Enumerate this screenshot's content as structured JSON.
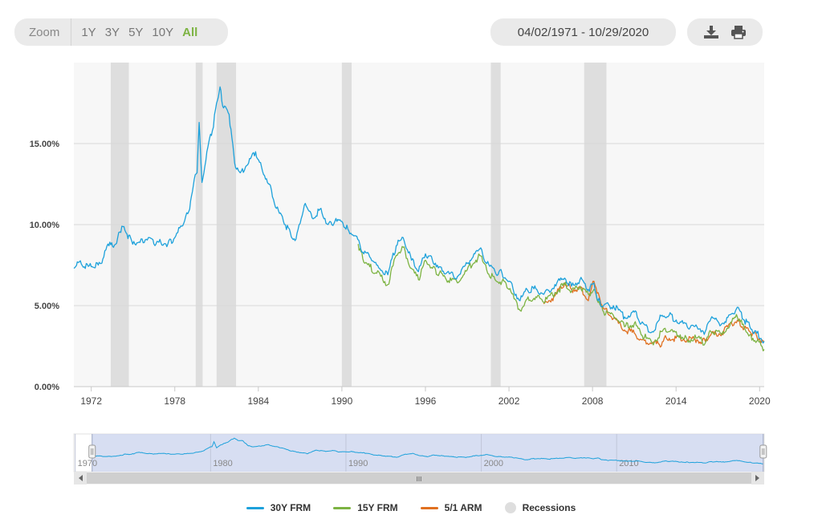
{
  "toolbar": {
    "zoom_label": "Zoom",
    "zoom_options": [
      "1Y",
      "3Y",
      "5Y",
      "10Y",
      "All"
    ],
    "active_zoom": "All",
    "date_range": "04/02/1971 - 10/29/2020",
    "download_icon": "download-icon",
    "print_icon": "print-icon"
  },
  "colors": {
    "frm30": "#1da1db",
    "frm15": "#7cb342",
    "arm51": "#e07020",
    "recession": "#dedede",
    "active_zoom": "#7cb342"
  },
  "chart_data": {
    "type": "line",
    "xlabel": "",
    "ylabel": "",
    "y_ticks": [
      "0.00%",
      "5.00%",
      "10.00%",
      "15.00%"
    ],
    "x_ticks": [
      "1972",
      "1978",
      "1984",
      "1990",
      "1996",
      "2002",
      "2008",
      "2014",
      "2020"
    ],
    "xlim": [
      1971.25,
      2020.83
    ],
    "ylim": [
      0,
      20
    ],
    "grid": "horizontal",
    "legend_position": "bottom",
    "series": [
      {
        "name": "30Y FRM",
        "points": [
          [
            1971.25,
            7.3
          ],
          [
            1971.5,
            7.7
          ],
          [
            1972.0,
            7.4
          ],
          [
            1972.5,
            7.4
          ],
          [
            1973.0,
            7.5
          ],
          [
            1973.4,
            8.0
          ],
          [
            1973.7,
            8.8
          ],
          [
            1974.1,
            8.6
          ],
          [
            1974.4,
            9.2
          ],
          [
            1974.7,
            9.9
          ],
          [
            1975.0,
            9.5
          ],
          [
            1975.4,
            9.0
          ],
          [
            1976.0,
            8.9
          ],
          [
            1976.6,
            9.2
          ],
          [
            1977.0,
            8.8
          ],
          [
            1977.5,
            8.9
          ],
          [
            1978.0,
            8.8
          ],
          [
            1978.5,
            9.2
          ],
          [
            1979.0,
            9.9
          ],
          [
            1979.5,
            10.8
          ],
          [
            1979.9,
            12.8
          ],
          [
            1980.1,
            13.2
          ],
          [
            1980.25,
            16.3
          ],
          [
            1980.45,
            12.6
          ],
          [
            1980.8,
            14.5
          ],
          [
            1981.2,
            15.8
          ],
          [
            1981.5,
            17.5
          ],
          [
            1981.75,
            18.5
          ],
          [
            1982.0,
            17.2
          ],
          [
            1982.4,
            16.8
          ],
          [
            1982.8,
            13.8
          ],
          [
            1983.2,
            13.2
          ],
          [
            1983.8,
            13.8
          ],
          [
            1984.3,
            14.5
          ],
          [
            1984.8,
            13.3
          ],
          [
            1985.3,
            12.5
          ],
          [
            1985.8,
            11.0
          ],
          [
            1986.3,
            10.2
          ],
          [
            1986.8,
            9.5
          ],
          [
            1987.2,
            9.1
          ],
          [
            1987.8,
            11.2
          ],
          [
            1988.5,
            10.4
          ],
          [
            1989.0,
            11.0
          ],
          [
            1989.5,
            10.0
          ],
          [
            1990.0,
            10.2
          ],
          [
            1990.5,
            10.2
          ],
          [
            1991.0,
            9.6
          ],
          [
            1991.5,
            9.3
          ],
          [
            1992.0,
            8.3
          ],
          [
            1992.5,
            8.0
          ],
          [
            1993.0,
            7.5
          ],
          [
            1993.8,
            6.9
          ],
          [
            1994.4,
            8.7
          ],
          [
            1994.9,
            9.2
          ],
          [
            1995.5,
            7.8
          ],
          [
            1996.0,
            7.1
          ],
          [
            1996.5,
            8.2
          ],
          [
            1997.0,
            7.8
          ],
          [
            1997.5,
            7.4
          ],
          [
            1998.0,
            7.0
          ],
          [
            1998.8,
            6.8
          ],
          [
            1999.5,
            7.6
          ],
          [
            2000.4,
            8.5
          ],
          [
            2000.9,
            7.6
          ],
          [
            2001.5,
            7.1
          ],
          [
            2002.0,
            7.0
          ],
          [
            2002.5,
            6.5
          ],
          [
            2003.3,
            5.3
          ],
          [
            2003.8,
            6.0
          ],
          [
            2004.5,
            6.0
          ],
          [
            2005.0,
            5.7
          ],
          [
            2005.8,
            6.3
          ],
          [
            2006.5,
            6.7
          ],
          [
            2007.0,
            6.2
          ],
          [
            2007.6,
            6.6
          ],
          [
            2008.2,
            6.0
          ],
          [
            2008.6,
            6.4
          ],
          [
            2008.9,
            5.3
          ],
          [
            2009.3,
            5.0
          ],
          [
            2010.0,
            5.0
          ],
          [
            2010.8,
            4.3
          ],
          [
            2011.5,
            4.6
          ],
          [
            2012.0,
            3.9
          ],
          [
            2012.8,
            3.4
          ],
          [
            2013.5,
            4.4
          ],
          [
            2014.0,
            4.4
          ],
          [
            2014.8,
            4.0
          ],
          [
            2015.3,
            3.7
          ],
          [
            2016.0,
            3.7
          ],
          [
            2016.6,
            3.4
          ],
          [
            2017.0,
            4.2
          ],
          [
            2017.8,
            3.9
          ],
          [
            2018.5,
            4.5
          ],
          [
            2018.9,
            4.9
          ],
          [
            2019.4,
            4.1
          ],
          [
            2019.8,
            3.7
          ],
          [
            2020.3,
            3.3
          ],
          [
            2020.83,
            2.8
          ]
        ]
      },
      {
        "name": "15Y FRM",
        "points": [
          [
            1991.67,
            8.8
          ],
          [
            1992.0,
            7.9
          ],
          [
            1992.5,
            7.4
          ],
          [
            1993.0,
            7.0
          ],
          [
            1993.8,
            6.3
          ],
          [
            1994.4,
            8.1
          ],
          [
            1994.9,
            8.6
          ],
          [
            1995.5,
            7.3
          ],
          [
            1996.0,
            6.6
          ],
          [
            1996.5,
            7.8
          ],
          [
            1997.0,
            7.3
          ],
          [
            1997.5,
            7.0
          ],
          [
            1998.0,
            6.6
          ],
          [
            1998.8,
            6.4
          ],
          [
            1999.5,
            7.2
          ],
          [
            2000.4,
            8.1
          ],
          [
            2000.9,
            7.2
          ],
          [
            2001.5,
            6.6
          ],
          [
            2002.0,
            6.5
          ],
          [
            2002.5,
            6.0
          ],
          [
            2003.3,
            4.7
          ],
          [
            2003.8,
            5.4
          ],
          [
            2004.5,
            5.5
          ],
          [
            2005.0,
            5.2
          ],
          [
            2005.8,
            5.8
          ],
          [
            2006.5,
            6.3
          ],
          [
            2007.0,
            5.9
          ],
          [
            2007.6,
            6.2
          ],
          [
            2008.2,
            5.7
          ],
          [
            2008.6,
            6.0
          ],
          [
            2008.9,
            5.2
          ],
          [
            2009.3,
            4.6
          ],
          [
            2010.0,
            4.4
          ],
          [
            2010.8,
            3.7
          ],
          [
            2011.5,
            3.9
          ],
          [
            2012.0,
            3.2
          ],
          [
            2012.8,
            2.7
          ],
          [
            2013.5,
            3.4
          ],
          [
            2014.0,
            3.4
          ],
          [
            2014.8,
            3.2
          ],
          [
            2015.3,
            2.9
          ],
          [
            2016.0,
            3.0
          ],
          [
            2016.6,
            2.7
          ],
          [
            2017.0,
            3.4
          ],
          [
            2017.8,
            3.2
          ],
          [
            2018.5,
            4.0
          ],
          [
            2018.9,
            4.3
          ],
          [
            2019.4,
            3.6
          ],
          [
            2019.8,
            3.2
          ],
          [
            2020.3,
            2.8
          ],
          [
            2020.83,
            2.3
          ]
        ]
      },
      {
        "name": "5/1 ARM",
        "points": [
          [
            2005.0,
            5.1
          ],
          [
            2005.8,
            5.6
          ],
          [
            2006.5,
            6.4
          ],
          [
            2007.0,
            6.0
          ],
          [
            2007.6,
            6.1
          ],
          [
            2008.2,
            5.3
          ],
          [
            2008.6,
            6.5
          ],
          [
            2008.9,
            5.8
          ],
          [
            2009.3,
            4.8
          ],
          [
            2010.0,
            4.2
          ],
          [
            2010.8,
            3.5
          ],
          [
            2011.5,
            3.3
          ],
          [
            2012.0,
            2.9
          ],
          [
            2012.8,
            2.7
          ],
          [
            2013.3,
            2.6
          ],
          [
            2013.8,
            3.0
          ],
          [
            2014.5,
            3.0
          ],
          [
            2015.3,
            2.9
          ],
          [
            2016.0,
            2.9
          ],
          [
            2016.6,
            2.8
          ],
          [
            2017.0,
            3.2
          ],
          [
            2017.8,
            3.3
          ],
          [
            2018.5,
            3.9
          ],
          [
            2018.9,
            4.1
          ],
          [
            2019.4,
            3.6
          ],
          [
            2019.8,
            3.4
          ],
          [
            2020.3,
            3.1
          ],
          [
            2020.83,
            2.8
          ]
        ]
      }
    ],
    "recessions": [
      [
        1973.9,
        1975.2
      ],
      [
        1980.0,
        1980.5
      ],
      [
        1981.5,
        1982.9
      ],
      [
        1990.5,
        1991.2
      ],
      [
        2001.2,
        2001.9
      ],
      [
        2007.9,
        2009.5
      ]
    ],
    "recessions_label": "Recessions",
    "navigator": {
      "x_ticks": [
        "1970",
        "1980",
        "1990",
        "2000",
        "2010"
      ],
      "xlim": [
        1969.9,
        2020.9
      ],
      "selected_range": [
        1971.25,
        2020.83
      ],
      "scrollbar_grip": "III"
    }
  }
}
